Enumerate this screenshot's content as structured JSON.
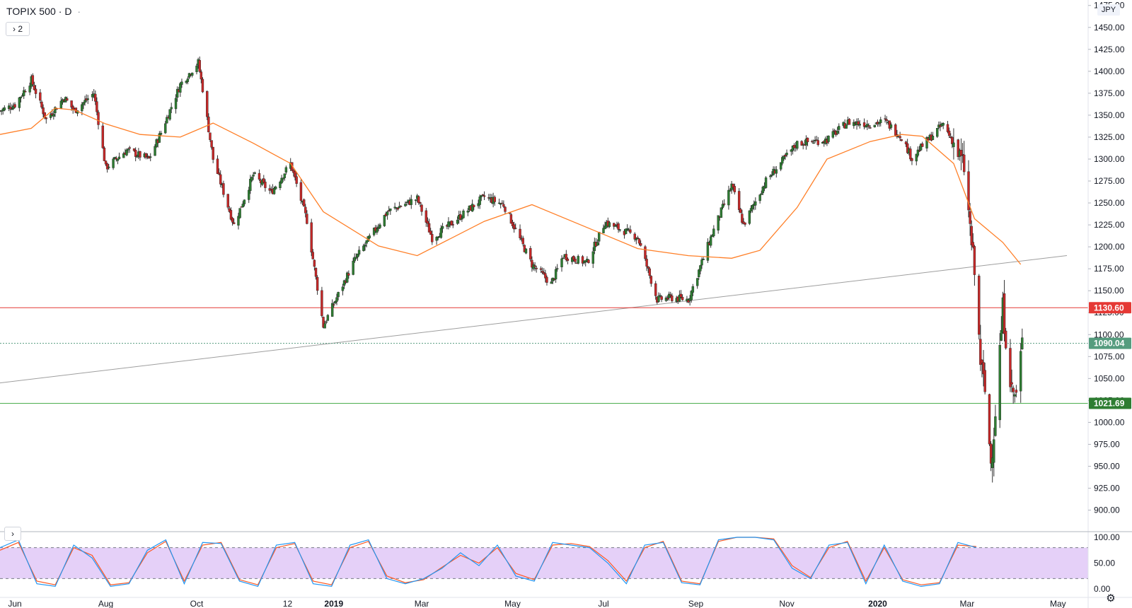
{
  "header": {
    "symbol": "TOPIX 500",
    "separator": "·",
    "interval": "D",
    "menu_dots": "·",
    "legend_toggle": "› 2",
    "currency": "JPY"
  },
  "price_labels": {
    "resistance": "1130.60",
    "last": "1090.04",
    "support": "1021.69"
  },
  "colors": {
    "up": "#26a69a",
    "up_body": "#2e7d32",
    "down": "#c62828",
    "ma": "#ff7f27",
    "resistance": "#e53935",
    "support": "#4caf50",
    "last": "#559c7e",
    "trendline": "#9e9e9e",
    "stoch_k": "#2196f3",
    "stoch_d": "#ff5722",
    "stoch_band": "#e1c8f7"
  },
  "osc_toggle": "›",
  "settings_icon": "gear-icon",
  "chart_data": [
    {
      "type": "candlestick",
      "title": "TOPIX 500 · D",
      "currency": "JPY",
      "y_axis_ticks": [
        "1475.00",
        "1450.00",
        "1425.00",
        "1400.00",
        "1375.00",
        "1350.00",
        "1325.00",
        "1300.00",
        "1275.00",
        "1250.00",
        "1225.00",
        "1200.00",
        "1175.00",
        "1150.00",
        "1125.00",
        "1100.00",
        "1075.00",
        "1050.00",
        "1025.00",
        "1000.00",
        "975.00",
        "950.00",
        "925.00",
        "900.00"
      ],
      "ylim": [
        890,
        1478
      ],
      "x_axis_ticks": [
        "Jun",
        "Aug",
        "Oct",
        "12",
        "2019",
        "Mar",
        "May",
        "Jul",
        "Sep",
        "Nov",
        "2020",
        "Mar",
        "May"
      ],
      "series": [
        {
          "name": "price_path",
          "x": [
            "2018-05-22",
            "2018-06-01",
            "2018-06-12",
            "2018-06-22",
            "2018-07-04",
            "2018-07-11",
            "2018-07-24",
            "2018-08-01",
            "2018-08-15",
            "2018-08-30",
            "2018-09-07",
            "2018-09-20",
            "2018-10-02",
            "2018-10-05",
            "2018-10-12",
            "2018-10-26",
            "2018-11-08",
            "2018-11-20",
            "2018-12-03",
            "2018-12-14",
            "2018-12-25",
            "2019-01-15",
            "2019-02-06",
            "2019-02-26",
            "2019-03-08",
            "2019-03-25",
            "2019-04-12",
            "2019-04-25",
            "2019-05-14",
            "2019-05-27",
            "2019-06-04",
            "2019-06-20",
            "2019-07-02",
            "2019-07-24",
            "2019-08-06",
            "2019-08-15",
            "2019-08-27",
            "2019-09-12",
            "2019-09-25",
            "2019-10-03",
            "2019-10-18",
            "2019-11-08",
            "2019-11-28",
            "2019-12-12",
            "2019-12-27",
            "2020-01-06",
            "2020-01-17",
            "2020-01-24",
            "2020-01-31",
            "2020-02-14",
            "2020-02-21",
            "2020-02-28",
            "2020-03-06",
            "2020-03-10",
            "2020-03-13",
            "2020-03-17",
            "2020-03-19",
            "2020-03-25",
            "2020-03-31",
            "2020-04-03",
            "2020-04-07"
          ],
          "values": [
            1355,
            1362,
            1390,
            1345,
            1370,
            1355,
            1375,
            1290,
            1310,
            1300,
            1330,
            1385,
            1410,
            1380,
            1300,
            1225,
            1282,
            1262,
            1295,
            1230,
            1110,
            1185,
            1240,
            1255,
            1210,
            1232,
            1257,
            1248,
            1180,
            1158,
            1190,
            1182,
            1228,
            1211,
            1140,
            1142,
            1140,
            1215,
            1270,
            1225,
            1275,
            1318,
            1322,
            1342,
            1340,
            1343,
            1325,
            1301,
            1315,
            1340,
            1318,
            1290,
            1170,
            1070,
            1035,
            955,
            990,
            1130,
            1035,
            1030,
            1090
          ]
        },
        {
          "name": "moving_average",
          "x": [
            "2018-05-22",
            "2018-06-12",
            "2018-06-28",
            "2018-07-11",
            "2018-08-01",
            "2018-08-24",
            "2018-09-20",
            "2018-10-12",
            "2018-11-08",
            "2018-12-03",
            "2018-12-25",
            "2019-01-31",
            "2019-02-26",
            "2019-04-12",
            "2019-05-14",
            "2019-06-20",
            "2019-07-24",
            "2019-08-27",
            "2019-09-25",
            "2019-10-14",
            "2019-11-08",
            "2019-11-28",
            "2019-12-27",
            "2020-01-17",
            "2020-01-31",
            "2020-02-21",
            "2020-03-06",
            "2020-03-25",
            "2020-04-06"
          ],
          "values": [
            1328,
            1335,
            1358,
            1356,
            1340,
            1328,
            1325,
            1341,
            1318,
            1295,
            1240,
            1201,
            1190,
            1229,
            1248,
            1222,
            1198,
            1190,
            1187,
            1196,
            1245,
            1300,
            1320,
            1328,
            1326,
            1295,
            1232,
            1205,
            1180
          ]
        }
      ],
      "horizontal_lines": [
        {
          "value": 1130.6,
          "label": "1130.60"
        },
        {
          "value": 1090.04,
          "label": "1090.04"
        },
        {
          "value": 1021.69,
          "label": "1021.69"
        }
      ],
      "trendline": {
        "x": [
          "2018-05-22",
          "2020-05-07"
        ],
        "values": [
          1045,
          1190
        ]
      }
    },
    {
      "type": "line",
      "title": "Stochastic",
      "ylim": [
        0,
        100
      ],
      "y_axis_ticks": [
        "100.00",
        "50.00",
        "0.00"
      ],
      "bands": [
        20,
        80
      ],
      "series": [
        {
          "name": "K",
          "values": [
            80,
            95,
            10,
            5,
            85,
            60,
            5,
            10,
            75,
            95,
            10,
            90,
            88,
            15,
            5,
            85,
            90,
            10,
            5,
            85,
            95,
            20,
            10,
            20,
            40,
            70,
            45,
            85,
            25,
            15,
            90,
            85,
            80,
            50,
            10,
            85,
            90,
            12,
            8,
            95,
            100,
            100,
            95,
            40,
            20,
            85,
            90,
            10,
            85,
            15,
            5,
            10,
            90,
            80
          ]
        },
        {
          "name": "D",
          "values": [
            75,
            90,
            15,
            8,
            80,
            65,
            8,
            12,
            70,
            92,
            15,
            85,
            90,
            18,
            8,
            80,
            88,
            15,
            8,
            80,
            92,
            25,
            12,
            18,
            42,
            65,
            50,
            80,
            30,
            18,
            85,
            88,
            82,
            55,
            15,
            80,
            92,
            15,
            10,
            92,
            100,
            100,
            97,
            45,
            22,
            80,
            92,
            15,
            80,
            18,
            8,
            12,
            85,
            82
          ]
        }
      ]
    }
  ]
}
